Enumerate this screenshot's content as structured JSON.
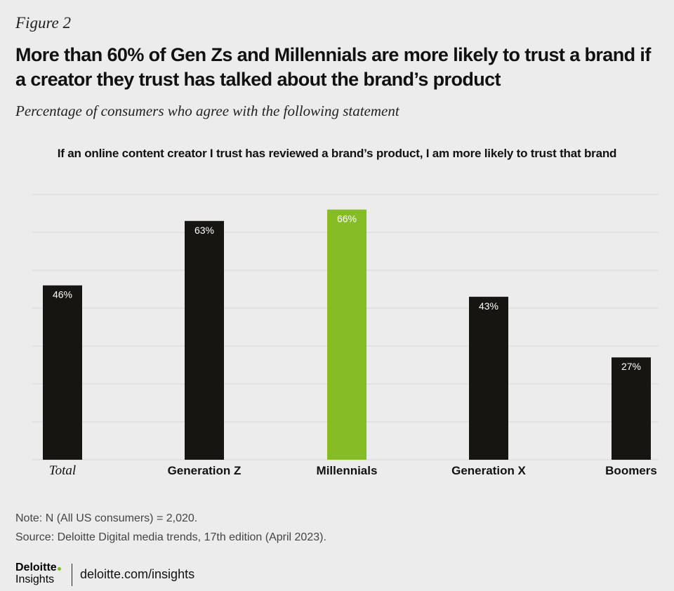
{
  "figure_label": "Figure 2",
  "headline": "More than 60% of Gen Zs and Millennials are more likely to trust a brand if a creator they trust has talked about the brand’s product",
  "subtitle": "Percentage of consumers who agree with the following statement",
  "colors": {
    "background": "#ececed",
    "bar_default": "#161512",
    "bar_highlight": "#86bc25",
    "gridline": "#d9d9db",
    "value_label": "#ffffff"
  },
  "chart_data": {
    "type": "bar",
    "title": "If an online content creator I trust has reviewed a brand’s product, I am more likely to trust that brand",
    "categories": [
      "Total",
      "Generation Z",
      "Millennials",
      "Generation X",
      "Boomers"
    ],
    "values": [
      46,
      63,
      66,
      43,
      27
    ],
    "value_labels": [
      "46%",
      "63%",
      "66%",
      "43%",
      "27%"
    ],
    "highlight": "Millennials",
    "xlabel": "",
    "ylabel": "",
    "ylim": [
      0,
      70
    ],
    "grid": true
  },
  "footer": {
    "note": "Note: N (All US consumers) = 2,020.",
    "source": "Source: Deloitte Digital media trends, 17th edition (April 2023).",
    "logo_word": "Deloitte",
    "logo_sub": "Insights",
    "link": "deloitte.com/insights"
  }
}
